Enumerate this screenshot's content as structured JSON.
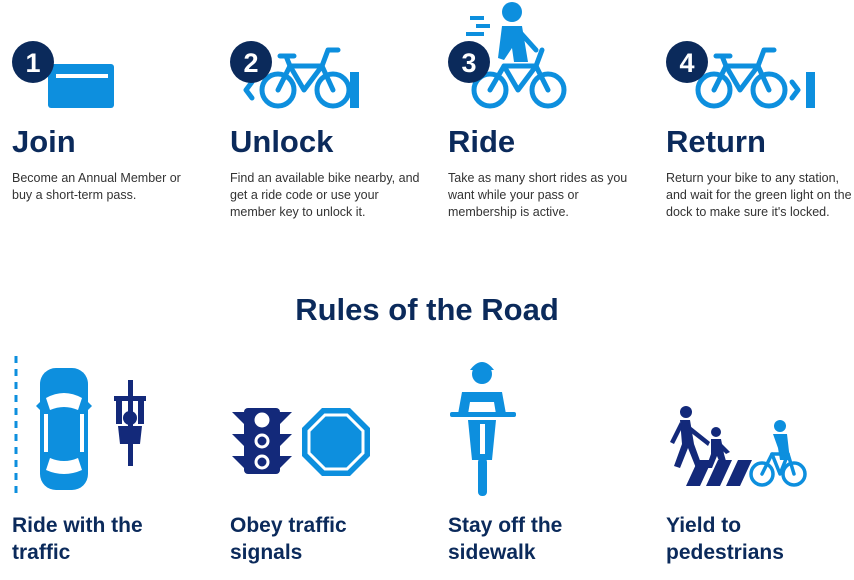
{
  "steps": [
    {
      "number": "1",
      "title": "Join",
      "description": "Become an Annual Member or buy a short-term pass."
    },
    {
      "number": "2",
      "title": "Unlock",
      "description": "Find an available bike nearby, and get a ride code or use your member key to unlock it."
    },
    {
      "number": "3",
      "title": "Ride",
      "description": "Take as many short rides as you want while your pass or membership is active."
    },
    {
      "number": "4",
      "title": "Return",
      "description": "Return your bike to any station, and wait for the green light on the dock to make sure it's locked."
    }
  ],
  "rules_heading": "Rules of the Road",
  "rules": [
    {
      "label": "Ride with the traffic",
      "icon": "car-and-cyclist-icon"
    },
    {
      "label": "Obey traffic signals",
      "icon": "traffic-light-and-stop-sign-icon"
    },
    {
      "label": "Stay off the sidewalk",
      "icon": "cyclist-front-icon"
    },
    {
      "label": "Yield to pedestrians",
      "icon": "pedestrians-crosswalk-icon"
    }
  ],
  "colors": {
    "navy": "#0b2a5b",
    "blue": "#0d8fde",
    "dark_blue": "#13297a"
  }
}
